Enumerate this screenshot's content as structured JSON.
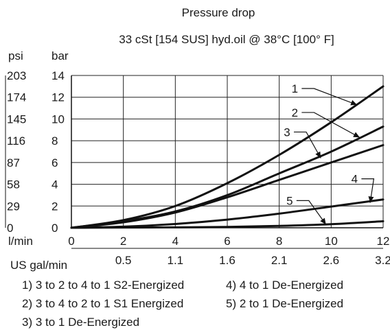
{
  "chart_data": {
    "type": "line",
    "title": "Pressure drop",
    "subtitle": "33 cSt [154 SUS] hyd.oil @ 38°C [100° F]",
    "y_left_label": "psi",
    "ylabel": "bar",
    "xlabel": "l/min",
    "x2label": "US gal/min",
    "xlim": [
      0,
      12
    ],
    "ylim": [
      0,
      14
    ],
    "x_ticks": [
      0,
      2,
      4,
      6,
      8,
      10,
      12
    ],
    "y_ticks": [
      0,
      2,
      4,
      6,
      8,
      10,
      12,
      14
    ],
    "psi_ticks": [
      "0",
      "29",
      "58",
      "87",
      "116",
      "145",
      "174",
      "203"
    ],
    "gal_ticks": [
      {
        "x": 2,
        "label": "0.5"
      },
      {
        "x": 4,
        "label": "1.1"
      },
      {
        "x": 6,
        "label": "1.6"
      },
      {
        "x": 8,
        "label": "2.1"
      },
      {
        "x": 10,
        "label": "2.6"
      },
      {
        "x": 12,
        "label": "3.2"
      }
    ],
    "grid": true,
    "series": [
      {
        "name": "1",
        "x": [
          0,
          2,
          4,
          6,
          8,
          10,
          12
        ],
        "y": [
          0,
          0.7,
          2.0,
          4.1,
          6.7,
          9.7,
          13.0
        ],
        "label_at": [
          8.6,
          12.8
        ],
        "arrow_to": [
          11.0,
          11.3
        ]
      },
      {
        "name": "2",
        "x": [
          0,
          2,
          4,
          6,
          8,
          10,
          12
        ],
        "y": [
          0,
          0.6,
          1.5,
          3.0,
          5.0,
          7.0,
          9.3
        ],
        "label_at": [
          8.6,
          10.6
        ],
        "arrow_to": [
          11.1,
          8.3
        ]
      },
      {
        "name": "3",
        "x": [
          0,
          2,
          4,
          6,
          8,
          10,
          12
        ],
        "y": [
          0,
          0.5,
          1.4,
          2.8,
          4.4,
          6.0,
          7.6
        ],
        "label_at": [
          8.3,
          8.8
        ],
        "arrow_to": [
          9.6,
          6.4
        ]
      },
      {
        "name": "4",
        "x": [
          0,
          2,
          4,
          6,
          8,
          10,
          12
        ],
        "y": [
          0,
          0.1,
          0.35,
          0.75,
          1.3,
          1.95,
          2.6
        ],
        "label_at": [
          10.9,
          4.5
        ],
        "arrow_to": [
          11.5,
          2.3
        ]
      },
      {
        "name": "5",
        "x": [
          0,
          2,
          4,
          6,
          8,
          10,
          12
        ],
        "y": [
          0,
          0.02,
          0.04,
          0.08,
          0.17,
          0.33,
          0.6
        ],
        "label_at": [
          8.4,
          2.5
        ],
        "arrow_to": [
          9.8,
          0.3
        ]
      }
    ]
  },
  "legend": [
    "1) 3 to 2 to 4 to 1 S2-Energized",
    "2) 3 to 4 to 2 to 1 S1 Energized",
    "3) 3 to 1 De-Energized",
    "4) 4 to 1 De-Energized",
    "5) 2 to 1 De-Energized"
  ]
}
